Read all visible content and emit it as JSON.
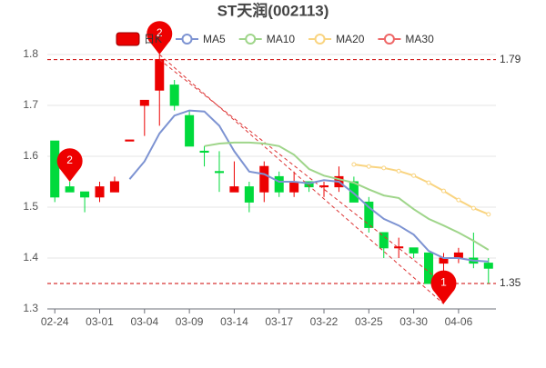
{
  "chart_data": {
    "type": "candlestick",
    "title": "ST天润(002113)",
    "categories": [
      "02-24",
      null,
      null,
      "03-01",
      null,
      null,
      "03-04",
      null,
      null,
      "03-09",
      null,
      null,
      "03-14",
      null,
      null,
      "03-17",
      null,
      null,
      "03-22",
      null,
      null,
      "03-25",
      null,
      null,
      "03-30",
      null,
      null,
      "04-06",
      null,
      null
    ],
    "candles": {
      "name": "日K",
      "up_color": "#ec0000",
      "down_color": "#00da3c",
      "open": [
        1.63,
        1.54,
        1.53,
        1.52,
        1.53,
        1.63,
        1.7,
        1.73,
        1.74,
        1.68,
        1.61,
        1.57,
        1.53,
        1.54,
        1.53,
        1.56,
        1.53,
        1.55,
        1.54,
        1.54,
        1.55,
        1.51,
        1.45,
        1.42,
        1.42,
        1.41,
        1.39,
        1.4,
        1.4,
        1.39
      ],
      "close": [
        1.52,
        1.53,
        1.52,
        1.54,
        1.55,
        1.632,
        1.71,
        1.79,
        1.7,
        1.62,
        1.608,
        1.568,
        1.54,
        1.51,
        1.58,
        1.53,
        1.55,
        1.54,
        1.542,
        1.56,
        1.51,
        1.46,
        1.42,
        1.422,
        1.41,
        1.35,
        1.4,
        1.41,
        1.39,
        1.38
      ],
      "high": [
        1.63,
        1.55,
        1.53,
        1.55,
        1.56,
        1.632,
        1.71,
        1.8,
        1.75,
        1.69,
        1.62,
        1.61,
        1.59,
        1.55,
        1.59,
        1.57,
        1.57,
        1.55,
        1.55,
        1.58,
        1.56,
        1.52,
        1.45,
        1.44,
        1.42,
        1.41,
        1.41,
        1.42,
        1.45,
        1.4
      ],
      "low": [
        1.51,
        1.53,
        1.49,
        1.51,
        1.53,
        1.63,
        1.64,
        1.66,
        1.69,
        1.62,
        1.58,
        1.53,
        1.53,
        1.49,
        1.51,
        1.52,
        1.52,
        1.53,
        1.52,
        1.53,
        1.51,
        1.45,
        1.4,
        1.4,
        1.4,
        1.35,
        1.31,
        1.39,
        1.38,
        1.35
      ]
    },
    "series": [
      {
        "name": "MA5",
        "color": "#7d93d2",
        "values": [
          null,
          null,
          null,
          null,
          null,
          1.555,
          1.59,
          1.645,
          1.68,
          1.69,
          1.688,
          1.66,
          1.61,
          1.57,
          1.565,
          1.55,
          1.55,
          1.547,
          1.553,
          1.55,
          1.527,
          1.5,
          1.477,
          1.464,
          1.446,
          1.414,
          1.4,
          1.4,
          1.395,
          1.393
        ]
      },
      {
        "name": "MA10",
        "color": "#9fd58a",
        "values": [
          null,
          null,
          null,
          null,
          null,
          null,
          null,
          null,
          null,
          null,
          1.62,
          1.625,
          1.627,
          1.627,
          1.625,
          1.62,
          1.603,
          1.575,
          1.562,
          1.555,
          1.548,
          1.535,
          1.523,
          1.518,
          1.496,
          1.477,
          1.464,
          1.45,
          1.434,
          1.416
        ]
      },
      {
        "name": "MA20",
        "color": "#f9d480",
        "values": [
          null,
          null,
          null,
          null,
          null,
          null,
          null,
          null,
          null,
          null,
          null,
          null,
          null,
          null,
          null,
          null,
          null,
          null,
          null,
          null,
          1.584,
          1.58,
          1.577,
          1.571,
          1.562,
          1.548,
          1.532,
          1.514,
          1.498,
          1.486
        ]
      },
      {
        "name": "MA30",
        "color": "#ee6666",
        "values": [
          null,
          null,
          null,
          null,
          null,
          null,
          null,
          null,
          null,
          null,
          null,
          null,
          null,
          null,
          null,
          null,
          null,
          null,
          null,
          null,
          null,
          null,
          null,
          null,
          null,
          null,
          null,
          null,
          null,
          null
        ]
      }
    ],
    "markers": [
      {
        "label": "2",
        "index": 1,
        "value": 1.55
      },
      {
        "label": "2",
        "index": 7,
        "value": 1.8
      },
      {
        "label": "1",
        "index": 26,
        "value": 1.31
      }
    ],
    "mark_lines": [
      {
        "value": 1.79,
        "label": "1.79"
      },
      {
        "value": 1.35,
        "label": "1.35"
      }
    ],
    "ylim": [
      1.3,
      1.8
    ],
    "yticks": [
      1.3,
      1.4,
      1.5,
      1.6,
      1.7,
      1.8
    ],
    "grid": true
  }
}
